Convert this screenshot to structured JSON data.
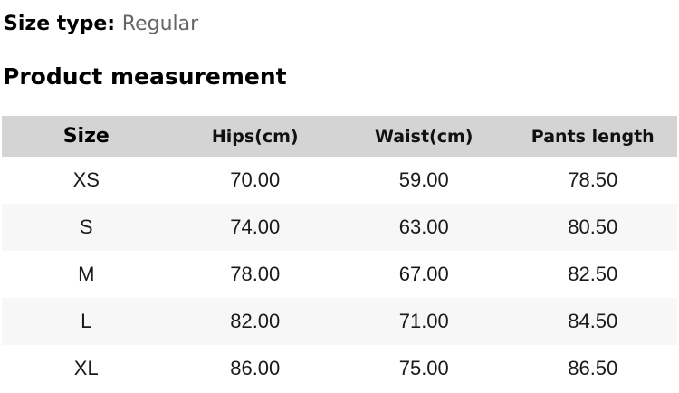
{
  "page": {
    "size_type_label": "Size type:",
    "size_type_value": "Regular",
    "section_title": "Product measurement"
  },
  "table": {
    "columns": [
      "Size",
      "Hips(cm)",
      "Waist(cm)",
      "Pants length"
    ],
    "rows": [
      {
        "size": "XS",
        "hips": "70.00",
        "waist": "59.00",
        "pants_length": "78.50"
      },
      {
        "size": "S",
        "hips": "74.00",
        "waist": "63.00",
        "pants_length": "80.50"
      },
      {
        "size": "M",
        "hips": "78.00",
        "waist": "67.00",
        "pants_length": "82.50"
      },
      {
        "size": "L",
        "hips": "82.00",
        "waist": "71.00",
        "pants_length": "84.50"
      },
      {
        "size": "XL",
        "hips": "86.00",
        "waist": "75.00",
        "pants_length": "86.50"
      }
    ]
  },
  "colors": {
    "header_bg": "#d4d4d4",
    "row_alt_bg": "#f7f7f7",
    "muted_text": "#666666",
    "body_text": "#1a1a1a"
  }
}
